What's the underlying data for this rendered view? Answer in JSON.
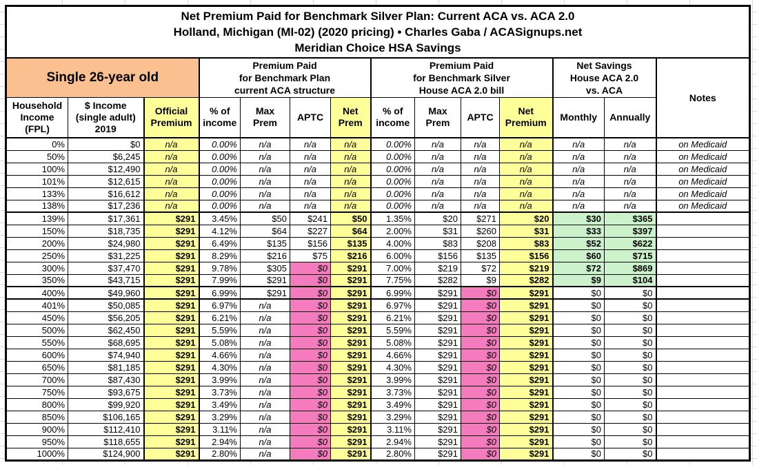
{
  "title": {
    "line1": "Net Premium Paid for Benchmark Silver Plan: Current ACA vs. ACA 2.0",
    "line2": "Holland, Michigan (MI-02) (2020 pricing) • Charles Gaba / ACASignups.net",
    "line3": "Meridian Choice HSA Savings"
  },
  "colors": {
    "peach_header": "#FAC090",
    "yellow_highlight": "#FFFF99",
    "pink_zero_aptc": "#F47CBE",
    "green_savings": "#CCF2CC",
    "border": "#000000",
    "gridline": "#D9D9D9"
  },
  "group_headers": {
    "subject": "Single 26-year old",
    "aca": "Premium Paid\nfor Benchmark Plan\ncurrent ACA structure",
    "aca2": "Premium Paid\nfor Benchmark Silver\nHouse ACA 2.0 bill",
    "savings": "Net Savings\nHouse ACA 2.0\nvs. ACA",
    "notes": "Notes"
  },
  "column_headers": {
    "fpl": "Household\nIncome\n(FPL)",
    "income": "$ Income\n(single adult)\n2019",
    "official": "Official\nPremium",
    "pct": "% of\nincome",
    "max": "Max\nPrem",
    "aptc": "APTC",
    "net1": "Net\nPrem",
    "net2": "Net\nPremium",
    "monthly": "Monthly",
    "annually": "Annually"
  },
  "rows": [
    {
      "fpl": "0%",
      "income": "$0",
      "official": "n/a",
      "pct1": "0.00%",
      "max1": "n/a",
      "aptc1": "n/a",
      "net1": "n/a",
      "pct2": "0.00%",
      "max2": "n/a",
      "aptc2": "n/a",
      "net2": "n/a",
      "monthly": "n/a",
      "annually": "n/a",
      "notes": "on Medicaid"
    },
    {
      "fpl": "50%",
      "income": "$6,245",
      "official": "n/a",
      "pct1": "0.00%",
      "max1": "n/a",
      "aptc1": "n/a",
      "net1": "n/a",
      "pct2": "0.00%",
      "max2": "n/a",
      "aptc2": "n/a",
      "net2": "n/a",
      "monthly": "n/a",
      "annually": "n/a",
      "notes": "on Medicaid"
    },
    {
      "fpl": "100%",
      "income": "$12,490",
      "official": "n/a",
      "pct1": "0.00%",
      "max1": "n/a",
      "aptc1": "n/a",
      "net1": "n/a",
      "pct2": "0.00%",
      "max2": "n/a",
      "aptc2": "n/a",
      "net2": "n/a",
      "monthly": "n/a",
      "annually": "n/a",
      "notes": "on Medicaid"
    },
    {
      "fpl": "101%",
      "income": "$12,615",
      "official": "n/a",
      "pct1": "0.00%",
      "max1": "n/a",
      "aptc1": "n/a",
      "net1": "n/a",
      "pct2": "0.00%",
      "max2": "n/a",
      "aptc2": "n/a",
      "net2": "n/a",
      "monthly": "n/a",
      "annually": "n/a",
      "notes": "on Medicaid"
    },
    {
      "fpl": "133%",
      "income": "$16,612",
      "official": "n/a",
      "pct1": "0.00%",
      "max1": "n/a",
      "aptc1": "n/a",
      "net1": "n/a",
      "pct2": "0.00%",
      "max2": "n/a",
      "aptc2": "n/a",
      "net2": "n/a",
      "monthly": "n/a",
      "annually": "n/a",
      "notes": "on Medicaid"
    },
    {
      "fpl": "138%",
      "income": "$17,236",
      "official": "n/a",
      "pct1": "0.00%",
      "max1": "n/a",
      "aptc1": "n/a",
      "net1": "n/a",
      "pct2": "0.00%",
      "max2": "n/a",
      "aptc2": "n/a",
      "net2": "n/a",
      "monthly": "n/a",
      "annually": "n/a",
      "notes": "on Medicaid"
    },
    {
      "fpl": "139%",
      "income": "$17,361",
      "official": "$291",
      "pct1": "3.45%",
      "max1": "$50",
      "aptc1": "$241",
      "net1": "$50",
      "pct2": "1.35%",
      "max2": "$20",
      "aptc2": "$271",
      "net2": "$20",
      "monthly": "$30",
      "annually": "$365",
      "notes": ""
    },
    {
      "fpl": "150%",
      "income": "$18,735",
      "official": "$291",
      "pct1": "4.12%",
      "max1": "$64",
      "aptc1": "$227",
      "net1": "$64",
      "pct2": "2.00%",
      "max2": "$31",
      "aptc2": "$260",
      "net2": "$31",
      "monthly": "$33",
      "annually": "$397",
      "notes": ""
    },
    {
      "fpl": "200%",
      "income": "$24,980",
      "official": "$291",
      "pct1": "6.49%",
      "max1": "$135",
      "aptc1": "$156",
      "net1": "$135",
      "pct2": "4.00%",
      "max2": "$83",
      "aptc2": "$208",
      "net2": "$83",
      "monthly": "$52",
      "annually": "$622",
      "notes": ""
    },
    {
      "fpl": "250%",
      "income": "$31,225",
      "official": "$291",
      "pct1": "8.29%",
      "max1": "$216",
      "aptc1": "$75",
      "net1": "$216",
      "pct2": "6.00%",
      "max2": "$156",
      "aptc2": "$135",
      "net2": "$156",
      "monthly": "$60",
      "annually": "$715",
      "notes": ""
    },
    {
      "fpl": "300%",
      "income": "$37,470",
      "official": "$291",
      "pct1": "9.78%",
      "max1": "$305",
      "aptc1": "$0",
      "net1": "$291",
      "pct2": "7.00%",
      "max2": "$219",
      "aptc2": "$72",
      "net2": "$219",
      "monthly": "$72",
      "annually": "$869",
      "notes": ""
    },
    {
      "fpl": "350%",
      "income": "$43,715",
      "official": "$291",
      "pct1": "7.99%",
      "max1": "$291",
      "aptc1": "$0",
      "net1": "$291",
      "pct2": "7.75%",
      "max2": "$282",
      "aptc2": "$9",
      "net2": "$282",
      "monthly": "$9",
      "annually": "$104",
      "notes": ""
    },
    {
      "fpl": "400%",
      "income": "$49,960",
      "official": "$291",
      "pct1": "6.99%",
      "max1": "$291",
      "aptc1": "$0",
      "net1": "$291",
      "pct2": "6.99%",
      "max2": "$291",
      "aptc2": "$0",
      "net2": "$291",
      "monthly": "$0",
      "annually": "$0",
      "notes": ""
    },
    {
      "fpl": "401%",
      "income": "$50,085",
      "official": "$291",
      "pct1": "6.97%",
      "max1": "n/a",
      "aptc1": "$0",
      "net1": "$291",
      "pct2": "6.97%",
      "max2": "$291",
      "aptc2": "$0",
      "net2": "$291",
      "monthly": "$0",
      "annually": "$0",
      "notes": ""
    },
    {
      "fpl": "450%",
      "income": "$56,205",
      "official": "$291",
      "pct1": "6.21%",
      "max1": "n/a",
      "aptc1": "$0",
      "net1": "$291",
      "pct2": "6.21%",
      "max2": "$291",
      "aptc2": "$0",
      "net2": "$291",
      "monthly": "$0",
      "annually": "$0",
      "notes": ""
    },
    {
      "fpl": "500%",
      "income": "$62,450",
      "official": "$291",
      "pct1": "5.59%",
      "max1": "n/a",
      "aptc1": "$0",
      "net1": "$291",
      "pct2": "5.59%",
      "max2": "$291",
      "aptc2": "$0",
      "net2": "$291",
      "monthly": "$0",
      "annually": "$0",
      "notes": ""
    },
    {
      "fpl": "550%",
      "income": "$68,695",
      "official": "$291",
      "pct1": "5.08%",
      "max1": "n/a",
      "aptc1": "$0",
      "net1": "$291",
      "pct2": "5.08%",
      "max2": "$291",
      "aptc2": "$0",
      "net2": "$291",
      "monthly": "$0",
      "annually": "$0",
      "notes": ""
    },
    {
      "fpl": "600%",
      "income": "$74,940",
      "official": "$291",
      "pct1": "4.66%",
      "max1": "n/a",
      "aptc1": "$0",
      "net1": "$291",
      "pct2": "4.66%",
      "max2": "$291",
      "aptc2": "$0",
      "net2": "$291",
      "monthly": "$0",
      "annually": "$0",
      "notes": ""
    },
    {
      "fpl": "650%",
      "income": "$81,185",
      "official": "$291",
      "pct1": "4.30%",
      "max1": "n/a",
      "aptc1": "$0",
      "net1": "$291",
      "pct2": "4.30%",
      "max2": "$291",
      "aptc2": "$0",
      "net2": "$291",
      "monthly": "$0",
      "annually": "$0",
      "notes": ""
    },
    {
      "fpl": "700%",
      "income": "$87,430",
      "official": "$291",
      "pct1": "3.99%",
      "max1": "n/a",
      "aptc1": "$0",
      "net1": "$291",
      "pct2": "3.99%",
      "max2": "$291",
      "aptc2": "$0",
      "net2": "$291",
      "monthly": "$0",
      "annually": "$0",
      "notes": ""
    },
    {
      "fpl": "750%",
      "income": "$93,675",
      "official": "$291",
      "pct1": "3.73%",
      "max1": "n/a",
      "aptc1": "$0",
      "net1": "$291",
      "pct2": "3.73%",
      "max2": "$291",
      "aptc2": "$0",
      "net2": "$291",
      "monthly": "$0",
      "annually": "$0",
      "notes": ""
    },
    {
      "fpl": "800%",
      "income": "$99,920",
      "official": "$291",
      "pct1": "3.49%",
      "max1": "n/a",
      "aptc1": "$0",
      "net1": "$291",
      "pct2": "3.49%",
      "max2": "$291",
      "aptc2": "$0",
      "net2": "$291",
      "monthly": "$0",
      "annually": "$0",
      "notes": ""
    },
    {
      "fpl": "850%",
      "income": "$106,165",
      "official": "$291",
      "pct1": "3.29%",
      "max1": "n/a",
      "aptc1": "$0",
      "net1": "$291",
      "pct2": "3.29%",
      "max2": "$291",
      "aptc2": "$0",
      "net2": "$291",
      "monthly": "$0",
      "annually": "$0",
      "notes": ""
    },
    {
      "fpl": "900%",
      "income": "$112,410",
      "official": "$291",
      "pct1": "3.11%",
      "max1": "n/a",
      "aptc1": "$0",
      "net1": "$291",
      "pct2": "3.11%",
      "max2": "$291",
      "aptc2": "$0",
      "net2": "$291",
      "monthly": "$0",
      "annually": "$0",
      "notes": ""
    },
    {
      "fpl": "950%",
      "income": "$118,655",
      "official": "$291",
      "pct1": "2.94%",
      "max1": "n/a",
      "aptc1": "$0",
      "net1": "$291",
      "pct2": "2.94%",
      "max2": "$291",
      "aptc2": "$0",
      "net2": "$291",
      "monthly": "$0",
      "annually": "$0",
      "notes": ""
    },
    {
      "fpl": "1000%",
      "income": "$124,900",
      "official": "$291",
      "pct1": "2.80%",
      "max1": "n/a",
      "aptc1": "$0",
      "net1": "$291",
      "pct2": "2.80%",
      "max2": "$291",
      "aptc2": "$0",
      "net2": "$291",
      "monthly": "$0",
      "annually": "$0",
      "notes": ""
    }
  ],
  "medicaid_note": "on Medicaid",
  "thick_border_rows": [
    "139%",
    "400%",
    "401%"
  ]
}
